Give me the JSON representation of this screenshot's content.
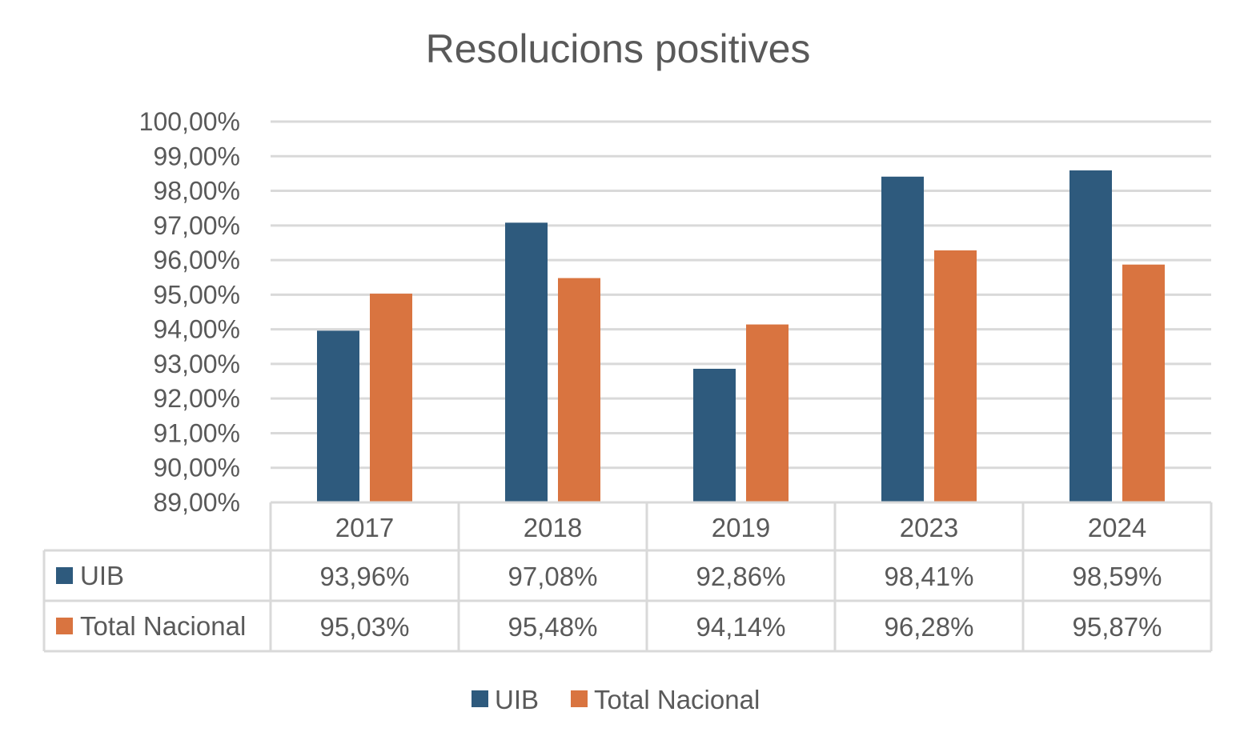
{
  "chart_data": {
    "type": "bar",
    "title": "Resolucions positives",
    "categories": [
      "2017",
      "2018",
      "2019",
      "2023",
      "2024"
    ],
    "series": [
      {
        "name": "UIB",
        "color": "#2e5a7d",
        "values": [
          93.96,
          97.08,
          92.86,
          98.41,
          98.59
        ],
        "labels": [
          "93,96%",
          "97,08%",
          "92,86%",
          "98,41%",
          "98,59%"
        ]
      },
      {
        "name": "Total Nacional",
        "color": "#d97440",
        "values": [
          95.03,
          95.48,
          94.14,
          96.28,
          95.87
        ],
        "labels": [
          "95,03%",
          "95,48%",
          "94,14%",
          "96,28%",
          "95,87%"
        ]
      }
    ],
    "ylim": [
      89,
      100
    ],
    "y_ticks": [
      100,
      99,
      98,
      97,
      96,
      95,
      94,
      93,
      92,
      91,
      90,
      89
    ],
    "y_tick_labels": [
      "100,00%",
      "99,00%",
      "98,00%",
      "97,00%",
      "96,00%",
      "95,00%",
      "94,00%",
      "93,00%",
      "92,00%",
      "91,00%",
      "90,00%",
      "89,00%"
    ],
    "grid": true,
    "data_table": true,
    "legend": "bottom"
  }
}
